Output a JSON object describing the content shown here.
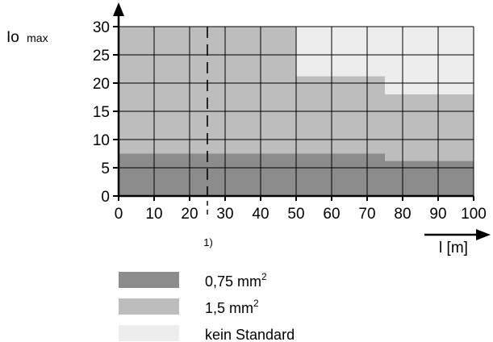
{
  "chart_data": {
    "type": "area",
    "y_axis": {
      "label_main": "Io",
      "label_sub": "max",
      "range": [
        0,
        30
      ],
      "ticks": [
        "0",
        "5",
        "10",
        "15",
        "20",
        "25",
        "30"
      ]
    },
    "x_axis": {
      "label": "l [m]",
      "range": [
        0,
        100
      ],
      "ticks": [
        "0",
        "10",
        "20",
        "30",
        "40",
        "50",
        "60",
        "70",
        "80",
        "90",
        "100"
      ]
    },
    "grid": true,
    "series": [
      {
        "key": "s075",
        "color": "#8c8c8c",
        "points": [
          [
            0,
            7.5
          ],
          [
            75,
            7.5
          ],
          [
            75,
            6.2
          ],
          [
            100,
            6.2
          ]
        ]
      },
      {
        "key": "s15",
        "color": "#bdbdbd",
        "points": [
          [
            0,
            30
          ],
          [
            50,
            30
          ],
          [
            50,
            21.2
          ],
          [
            75,
            21.2
          ],
          [
            75,
            18
          ],
          [
            100,
            18
          ]
        ]
      },
      {
        "key": "kein",
        "color": "#ededed",
        "points": [
          [
            0,
            30
          ],
          [
            100,
            30
          ]
        ]
      }
    ],
    "marker": {
      "x": 25,
      "label": "1)"
    },
    "legend": [
      {
        "key": "s075",
        "label": "0,75 mm",
        "sup": "2"
      },
      {
        "key": "s15",
        "label": "1,5 mm",
        "sup": "2"
      },
      {
        "key": "kein",
        "label": "kein Standard",
        "sup": ""
      }
    ]
  }
}
